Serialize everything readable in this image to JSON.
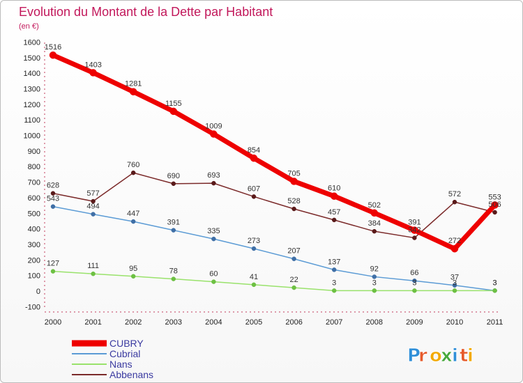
{
  "chart_data": {
    "type": "line",
    "title": "Evolution du Montant de la Dette par Habitant",
    "subtitle": "(en €)",
    "xlabel": "",
    "ylabel": "",
    "x": [
      "2000",
      "2001",
      "2002",
      "2003",
      "2004",
      "2005",
      "2006",
      "2007",
      "2008",
      "2009",
      "2010",
      "2011"
    ],
    "ylim": [
      -100,
      1600
    ],
    "yticks": [
      -100,
      0,
      100,
      200,
      300,
      400,
      500,
      600,
      700,
      800,
      900,
      1000,
      1100,
      1200,
      1300,
      1400,
      1500,
      1600
    ],
    "grid": false,
    "legend_position": "bottom-left",
    "series": [
      {
        "name": "CUBRY",
        "color": "#ee0000",
        "point_color": "#ee0000",
        "values": [
          1516,
          1403,
          1281,
          1155,
          1009,
          854,
          705,
          610,
          502,
          391,
          272,
          553
        ]
      },
      {
        "name": "Cubrial",
        "color": "#5b9bd5",
        "point_color": "#3f6fa6",
        "values": [
          543,
          494,
          447,
          391,
          335,
          273,
          207,
          137,
          92,
          66,
          37,
          3
        ]
      },
      {
        "name": "Nans",
        "color": "#99e26b",
        "point_color": "#6dc043",
        "values": [
          127,
          111,
          95,
          78,
          60,
          41,
          22,
          3,
          3,
          3,
          3,
          3
        ]
      },
      {
        "name": "Abbenans",
        "color": "#7b2a2a",
        "point_color": "#5a1a1a",
        "values": [
          628,
          577,
          760,
          690,
          693,
          607,
          528,
          457,
          384,
          342,
          572,
          506
        ]
      }
    ]
  },
  "brand": {
    "logo_text": "Proxiti"
  }
}
